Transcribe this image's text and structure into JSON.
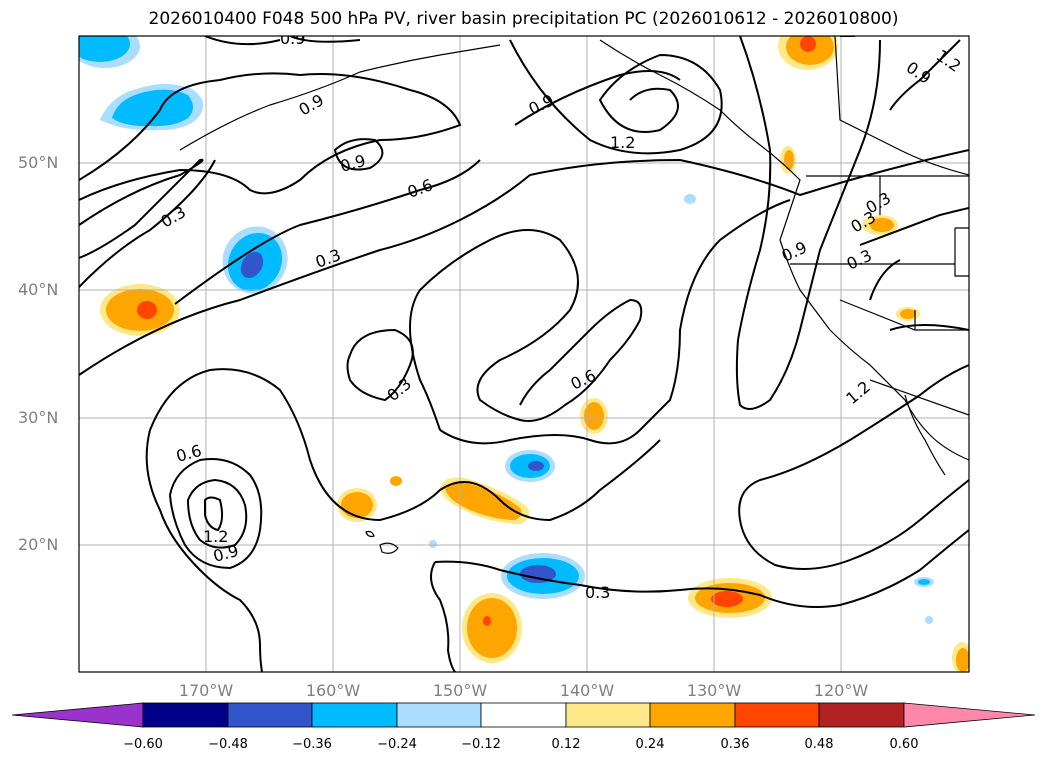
{
  "title": "2026010400 F048 500 hPa PV, river basin precipitation PC (2026010612 - 2026010800)",
  "lat_labels": [
    "50°N",
    "40°N",
    "30°N",
    "20°N"
  ],
  "lon_labels": [
    "170°W",
    "160°W",
    "150°W",
    "140°W",
    "130°W",
    "120°W"
  ],
  "contour_labels": [
    "0.9",
    "0.9",
    "0.9",
    "1.2",
    "0.9",
    "1.2",
    "0.6",
    "0.3",
    "0.3",
    "0.9",
    "0.3",
    "0.3",
    "0.3",
    "0.6",
    "0.6",
    "1.2",
    "0.9",
    "0.3",
    "0.9",
    "1.2",
    "0.3"
  ],
  "colorbar": {
    "ticks": [
      "−0.60",
      "−0.48",
      "−0.36",
      "−0.24",
      "−0.12",
      "0.12",
      "0.24",
      "0.36",
      "0.48",
      "0.60"
    ],
    "colors": [
      "#9933cc",
      "#000088",
      "#3355cc",
      "#00bbff",
      "#aaddff",
      "#ffffff",
      "#ffe888",
      "#ffa500",
      "#ff4500",
      "#b22222",
      "#ff88aa"
    ]
  },
  "colors": {
    "pv_contour": "#000000",
    "grid": "#b0b0b0",
    "axis_label": "#808080"
  }
}
